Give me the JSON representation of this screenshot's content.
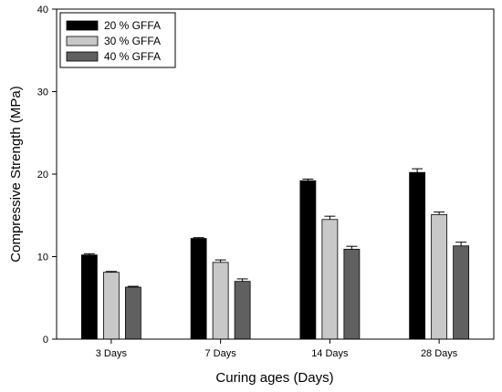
{
  "chart_data": {
    "type": "bar",
    "categories": [
      "3 Days",
      "7 Days",
      "14 Days",
      "28 Days"
    ],
    "series": [
      {
        "name": "20 % GFFA",
        "values": [
          10.2,
          12.2,
          19.2,
          20.2
        ],
        "errors": [
          0.15,
          0.1,
          0.2,
          0.45
        ],
        "color": "#000000"
      },
      {
        "name": "30 % GFFA",
        "values": [
          8.1,
          9.3,
          14.5,
          15.1
        ],
        "errors": [
          0.1,
          0.3,
          0.4,
          0.3
        ],
        "color": "#c8c8c8"
      },
      {
        "name": "40 % GFFA",
        "values": [
          6.3,
          7.0,
          10.9,
          11.3
        ],
        "errors": [
          0.1,
          0.3,
          0.35,
          0.45
        ],
        "color": "#606060"
      }
    ],
    "xlabel": "Curing ages (Days)",
    "ylabel": "Compressive Strength (MPa)",
    "ylim": [
      0,
      40
    ],
    "yticks": [
      0,
      10,
      20,
      30,
      40
    ],
    "grid": false,
    "legend_position": "top-left"
  }
}
